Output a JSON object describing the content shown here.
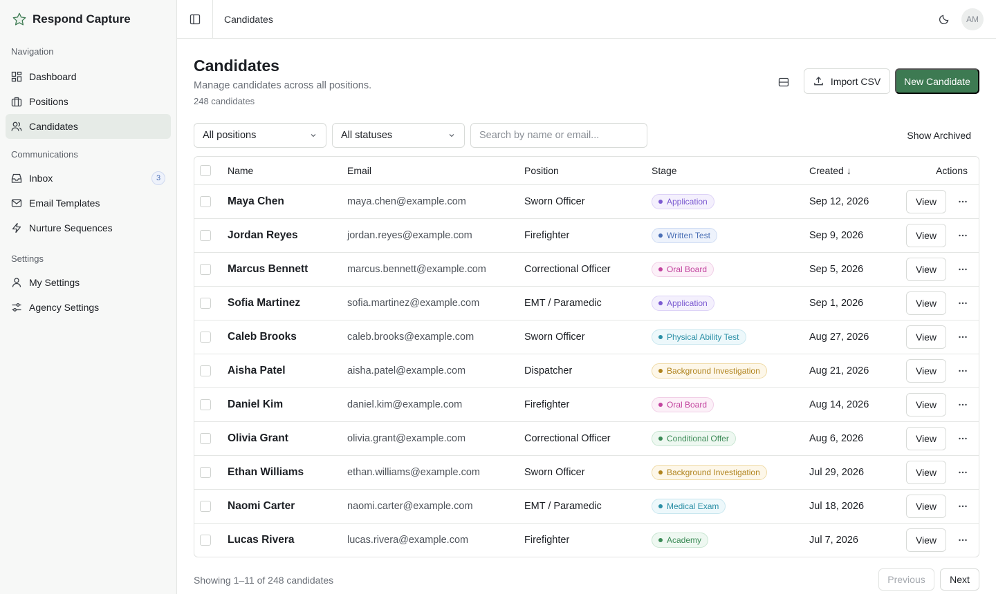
{
  "brand": {
    "name": "Respond Capture"
  },
  "sidebar": {
    "groups": [
      {
        "label": "Navigation",
        "items": [
          {
            "label": "Dashboard",
            "icon": "dashboard-icon"
          },
          {
            "label": "Positions",
            "icon": "briefcase-icon"
          },
          {
            "label": "Candidates",
            "icon": "users-icon",
            "active": true
          }
        ]
      },
      {
        "label": "Communications",
        "items": [
          {
            "label": "Inbox",
            "icon": "inbox-icon",
            "badge": "3"
          },
          {
            "label": "Email Templates",
            "icon": "mail-icon"
          },
          {
            "label": "Nurture Sequences",
            "icon": "zap-icon"
          }
        ]
      },
      {
        "label": "Settings",
        "items": [
          {
            "label": "My Settings",
            "icon": "user-icon"
          },
          {
            "label": "Agency Settings",
            "icon": "sliders-icon"
          }
        ]
      }
    ]
  },
  "header": {
    "breadcrumb": "Candidates",
    "avatar": "AM"
  },
  "page": {
    "title": "Candidates",
    "subtitle": "Manage candidates across all positions.",
    "count": "248 candidates",
    "import_label": "Import CSV",
    "new_label": "New Candidate"
  },
  "filters": {
    "position": "All positions",
    "status": "All statuses",
    "search_placeholder": "Search by name or email...",
    "archived_label": "Show Archived"
  },
  "table": {
    "columns": {
      "name": "Name",
      "email": "Email",
      "position": "Position",
      "stage": "Stage",
      "created": "Created",
      "created_arrow": "↓",
      "actions": "Actions"
    },
    "view_label": "View",
    "rows": [
      {
        "name": "Maya Chen",
        "email": "maya.chen@example.com",
        "position": "Sworn Officer",
        "stage": "Application",
        "created": "Sep 12, 2026"
      },
      {
        "name": "Jordan Reyes",
        "email": "jordan.reyes@example.com",
        "position": "Firefighter",
        "stage": "Written Test",
        "created": "Sep 9, 2026"
      },
      {
        "name": "Marcus Bennett",
        "email": "marcus.bennett@example.com",
        "position": "Correctional Officer",
        "stage": "Oral Board",
        "created": "Sep 5, 2026"
      },
      {
        "name": "Sofia Martinez",
        "email": "sofia.martinez@example.com",
        "position": "EMT / Paramedic",
        "stage": "Application",
        "created": "Sep 1, 2026"
      },
      {
        "name": "Caleb Brooks",
        "email": "caleb.brooks@example.com",
        "position": "Sworn Officer",
        "stage": "Physical Ability Test",
        "created": "Aug 27, 2026"
      },
      {
        "name": "Aisha Patel",
        "email": "aisha.patel@example.com",
        "position": "Dispatcher",
        "stage": "Background Investigation",
        "created": "Aug 21, 2026"
      },
      {
        "name": "Daniel Kim",
        "email": "daniel.kim@example.com",
        "position": "Firefighter",
        "stage": "Oral Board",
        "created": "Aug 14, 2026"
      },
      {
        "name": "Olivia Grant",
        "email": "olivia.grant@example.com",
        "position": "Correctional Officer",
        "stage": "Conditional Offer",
        "created": "Aug 6, 2026"
      },
      {
        "name": "Ethan Williams",
        "email": "ethan.williams@example.com",
        "position": "Sworn Officer",
        "stage": "Background Investigation",
        "created": "Jul 29, 2026"
      },
      {
        "name": "Naomi Carter",
        "email": "naomi.carter@example.com",
        "position": "EMT / Paramedic",
        "stage": "Medical Exam",
        "created": "Jul 18, 2026"
      },
      {
        "name": "Lucas Rivera",
        "email": "lucas.rivera@example.com",
        "position": "Firefighter",
        "stage": "Academy",
        "created": "Jul 7, 2026"
      }
    ]
  },
  "stage_colors": {
    "Application": {
      "text": "#7b5ad1",
      "bg": "#f4f0fd",
      "border": "#ddd2f7"
    },
    "Written Test": {
      "text": "#4a6fb5",
      "bg": "#eef3fc",
      "border": "#cfdcf3"
    },
    "Oral Board": {
      "text": "#c2439e",
      "bg": "#fcf0f8",
      "border": "#f1cfe6"
    },
    "Physical Ability Test": {
      "text": "#2b8fa6",
      "bg": "#edf8fb",
      "border": "#c9e7ef"
    },
    "Background Investigation": {
      "text": "#b0831d",
      "bg": "#fdf7e9",
      "border": "#efdba8"
    },
    "Conditional Offer": {
      "text": "#3a8a55",
      "bg": "#eef8f1",
      "border": "#c9e6d2"
    },
    "Medical Exam": {
      "text": "#2b8fa6",
      "bg": "#edf8fb",
      "border": "#c9e7ef"
    },
    "Academy": {
      "text": "#3a8a55",
      "bg": "#eef8f1",
      "border": "#c9e6d2"
    }
  },
  "pagination": {
    "summary": "Showing 1–11 of 248 candidates",
    "prev_label": "Previous",
    "next_label": "Next"
  },
  "colors": {
    "accent": "#3d7a52"
  }
}
